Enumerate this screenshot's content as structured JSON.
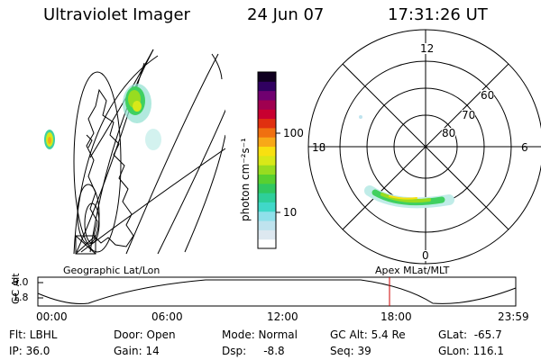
{
  "header": {
    "title": "Ultraviolet Imager",
    "date": "24 Jun 07",
    "time": "17:31:26 UT"
  },
  "colorbar": {
    "unit_label": "photon cm⁻²s⁻¹",
    "ticks": [
      "100",
      "10"
    ],
    "colors": [
      "#ffffff",
      "#dde8f0",
      "#bfe3ee",
      "#8fe0ea",
      "#40d8c8",
      "#2ecf9a",
      "#30c860",
      "#58d030",
      "#98dc20",
      "#d8e818",
      "#f8e010",
      "#f8a818",
      "#f07010",
      "#e03010",
      "#c80030",
      "#a00050",
      "#700070",
      "#300060",
      "#100020"
    ]
  },
  "polar": {
    "mlt_labels": {
      "top": "12",
      "right": "6",
      "bottom": "0",
      "left": "18"
    },
    "lat_labels": [
      "60",
      "70",
      "80"
    ]
  },
  "map": {
    "caption_left": "Geographic Lat/Lon",
    "caption_right": "Apex MLat/MLT"
  },
  "altitude_plot": {
    "ylabel": "GC Alt",
    "y_ticks": [
      "9.0",
      "1.8"
    ],
    "x_ticks": [
      "00:00",
      "06:00",
      "12:00",
      "18:00",
      "23:59"
    ],
    "marker_color": "#cc0000"
  },
  "status": {
    "flt": "Flt: LBHL",
    "ip": "IP: 36.0",
    "door": "Door: Open",
    "gain": "Gain: 14",
    "mode": "Mode: Normal",
    "dsp": "Dsp:     -8.8",
    "gc_alt": "GC Alt: 5.4 Re",
    "seq": "Seq: 39",
    "glat": "GLat:  -65.7",
    "glon": "GLon: 116.1"
  }
}
